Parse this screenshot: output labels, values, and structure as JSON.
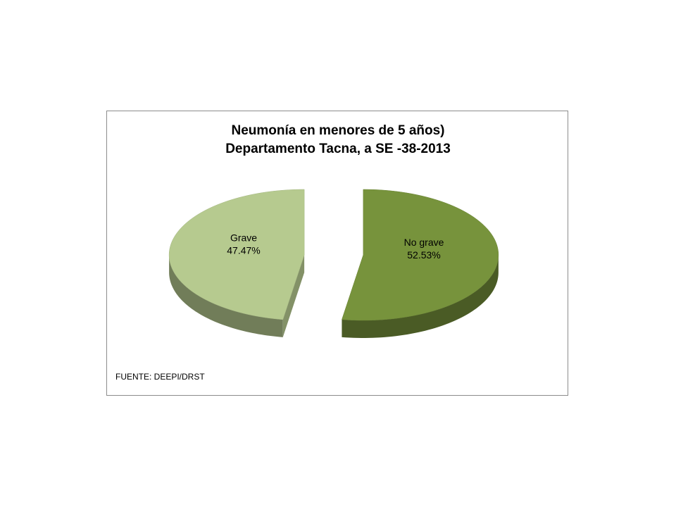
{
  "chart_data": {
    "type": "pie",
    "title": [
      "Neumonía  en menores de  5 años)",
      "Departamento Tacna, a SE -38-2013"
    ],
    "categories": [
      "No grave",
      "Grave"
    ],
    "values": [
      52.53,
      47.47
    ],
    "value_labels": [
      "52.53%",
      "47.47%"
    ],
    "colors": [
      "#77933c",
      "#b6ca8f"
    ],
    "note": "FUENTE: DEEPI/DRST"
  }
}
